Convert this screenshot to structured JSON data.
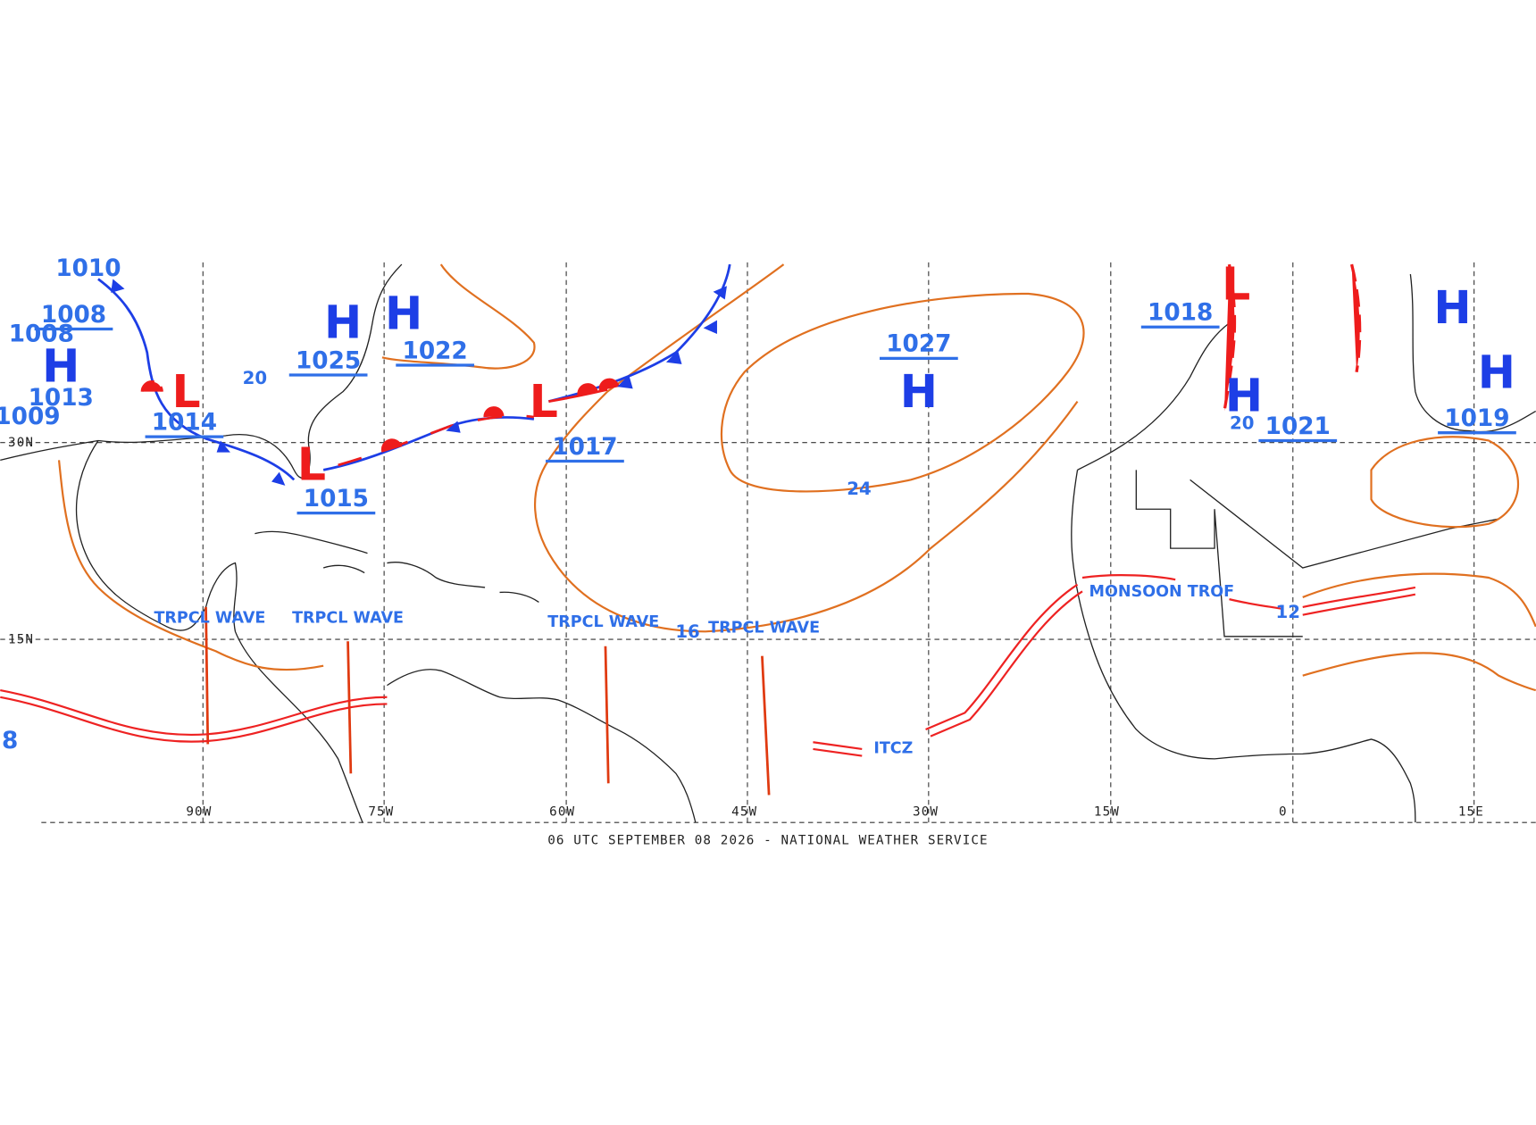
{
  "map": {
    "footer": "06 UTC SEPTEMBER 08 2026 - NATIONAL WEATHER SERVICE",
    "longitudes": [
      "90W",
      "75W",
      "60W",
      "45W",
      "30W",
      "15W",
      "0",
      "15E"
    ],
    "latitudes": [
      "30N",
      "15N"
    ],
    "centers": [
      "H",
      "H",
      "L",
      "L",
      "L",
      "H",
      "L",
      "H",
      "H",
      "H",
      "H"
    ],
    "pressures": [
      "1008",
      "1013",
      "1014",
      "1025",
      "1022",
      "1017",
      "1015",
      "1027",
      "1018",
      "1021",
      "1019",
      "1010",
      "1008",
      "1009"
    ],
    "features": [
      "TRPCL WAVE",
      "TRPCL WAVE",
      "TRPCL WAVE",
      "TRPCL WAVE",
      "ITCZ",
      "MONSOON TROF"
    ],
    "isobar_labels": [
      "20",
      "24",
      "16",
      "12",
      "20",
      "8"
    ]
  }
}
